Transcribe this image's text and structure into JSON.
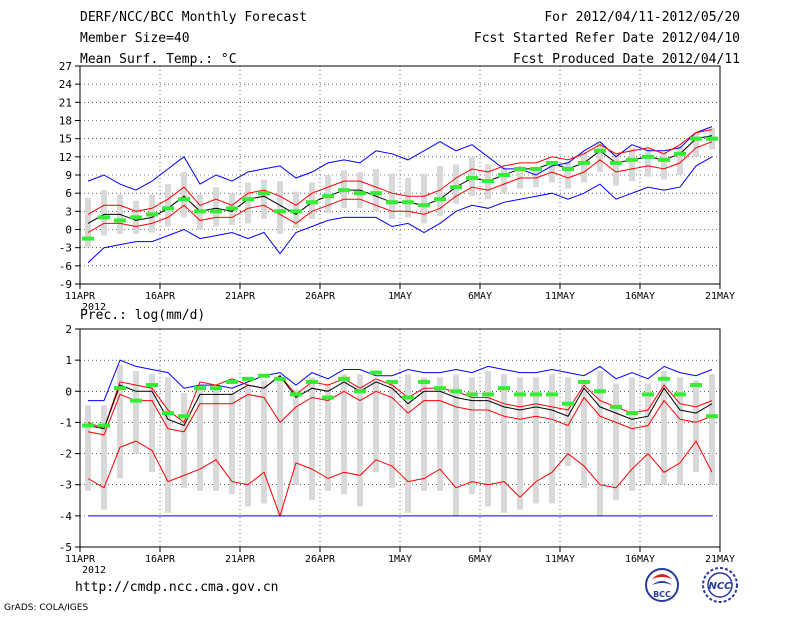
{
  "header": {
    "title": "DERF/NCC/BCC Monthly Forecast",
    "member_size": "Member Size=40",
    "variable": "Mean Surf. Temp.: °C",
    "period": "For 2012/04/11-2012/05/20",
    "started": "Fcst Started Refer Date 2012/04/10",
    "produced": "Fcst Produced Date 2012/04/11"
  },
  "footer": {
    "url": "http://cmdp.ncc.cma.gov.cn",
    "credit": "GrADS: COLA/IGES",
    "logo_bcc": "BCC",
    "logo_ncc": "NCC"
  },
  "colors": {
    "max_min": "#0000ff",
    "spread": "#ff0000",
    "mean": "#000000",
    "median": "#33ee33",
    "box": "#d9d9d9",
    "grid": "#000000"
  },
  "chart_data": [
    {
      "type": "line",
      "title": "Mean Surf. Temp.: °C",
      "x_tick_labels": [
        "11APR",
        "16APR",
        "21APR",
        "26APR",
        "1MAY",
        "6MAY",
        "11MAY",
        "16MAY",
        "21MAY"
      ],
      "x_year_label": "2012",
      "ylim": [
        -9,
        27
      ],
      "y_ticks": [
        -9,
        -6,
        -3,
        0,
        3,
        6,
        9,
        12,
        15,
        18,
        21,
        24,
        27
      ],
      "days": 40,
      "series": [
        {
          "name": "max",
          "color": "blue",
          "values": [
            8,
            9,
            7.5,
            6.5,
            8,
            10,
            12,
            7.5,
            9,
            8,
            9.5,
            10,
            10.5,
            8.5,
            9.5,
            11,
            11.5,
            11,
            13,
            12.5,
            11.5,
            13,
            14.5,
            13,
            14,
            12,
            10,
            10,
            9,
            10.5,
            11,
            13,
            14.5,
            12,
            14,
            13,
            13,
            13.5,
            16,
            17
          ]
        },
        {
          "name": "upper",
          "color": "red",
          "values": [
            2.5,
            4,
            4,
            3,
            3.5,
            5,
            7,
            4,
            5,
            4,
            6,
            6.5,
            5.5,
            4,
            6,
            7,
            8,
            8,
            7,
            6,
            5.5,
            5.5,
            6.5,
            8.5,
            10,
            9.5,
            10.5,
            11,
            11,
            12,
            11.5,
            12.5,
            14,
            12.5,
            13,
            13.5,
            12.5,
            14,
            16,
            16.5
          ]
        },
        {
          "name": "mean",
          "color": "black",
          "values": [
            1,
            2.5,
            2.5,
            1.5,
            2,
            3.5,
            5.5,
            3,
            3.5,
            3,
            5,
            5.5,
            4,
            2.5,
            4.5,
            5.5,
            6.5,
            6.5,
            5.5,
            4.5,
            4.5,
            4,
            5,
            7,
            8.5,
            8,
            9,
            10,
            10,
            11,
            10,
            11,
            13,
            11,
            11.5,
            12,
            11.5,
            12.5,
            15,
            15.5
          ]
        },
        {
          "name": "lower",
          "color": "red",
          "values": [
            -0.5,
            1,
            1,
            0.5,
            1,
            2,
            4,
            1.5,
            2,
            2,
            3.5,
            4,
            2.5,
            1,
            3,
            4,
            5,
            5,
            4,
            3,
            3,
            2.5,
            3.5,
            5.5,
            7,
            6.5,
            7.5,
            8.5,
            8.5,
            9.5,
            8.5,
            9.5,
            11.5,
            9.5,
            10,
            10.5,
            10,
            11,
            13.5,
            14.5
          ]
        },
        {
          "name": "min",
          "color": "blue",
          "values": [
            -5.5,
            -3,
            -2.5,
            -2,
            -2,
            -1,
            0,
            -1.5,
            -1,
            -0.5,
            -1.5,
            -0.5,
            -4,
            -0.5,
            0.5,
            1.5,
            2,
            2,
            2,
            0.5,
            1,
            -0.5,
            1,
            3,
            4,
            3.5,
            4.5,
            5,
            5.5,
            6,
            5,
            6,
            7.5,
            5,
            6,
            7,
            6.5,
            7,
            10.5,
            12
          ]
        }
      ],
      "median_markers": [
        -1.5,
        2,
        1.5,
        2,
        2.5,
        3.5,
        5,
        3,
        3,
        3.5,
        5,
        6,
        3,
        3,
        4.5,
        5.5,
        6.5,
        6,
        6,
        4.5,
        4.5,
        4,
        5,
        7,
        8.5,
        8,
        9,
        10,
        10,
        11,
        10,
        11,
        13,
        11,
        11.5,
        12,
        11.5,
        12.5,
        15,
        15
      ]
    },
    {
      "type": "line",
      "title": "Prec.: log(mm/d)",
      "x_tick_labels": [
        "11APR",
        "16APR",
        "21APR",
        "26APR",
        "1MAY",
        "6MAY",
        "11MAY",
        "16MAY",
        "21MAY"
      ],
      "x_year_label": "2012",
      "ylim": [
        -5,
        2
      ],
      "y_ticks": [
        -5,
        -4,
        -3,
        -2,
        -1,
        0,
        1,
        2
      ],
      "days": 40,
      "series": [
        {
          "name": "max",
          "color": "blue",
          "values": [
            -0.3,
            -0.3,
            1,
            0.8,
            0.7,
            0.6,
            0.1,
            0.2,
            0.2,
            0.1,
            0.3,
            0.5,
            0.6,
            0.2,
            0.6,
            0.4,
            0.7,
            0.7,
            0.5,
            0.5,
            0.7,
            0.6,
            0.6,
            0.7,
            0.6,
            0.8,
            0.7,
            0.6,
            0.6,
            0.7,
            0.6,
            0.5,
            0.8,
            0.4,
            0.6,
            0.4,
            0.8,
            0.6,
            0.5,
            0.7
          ]
        },
        {
          "name": "upper",
          "color": "red",
          "values": [
            -1,
            -1.2,
            0.3,
            0.2,
            0.1,
            -0.6,
            -1,
            0.3,
            0.2,
            0.4,
            0.2,
            0.1,
            0.5,
            -0.1,
            0.3,
            0.2,
            0.4,
            0.1,
            0.4,
            0.2,
            -0.2,
            0.1,
            0.1,
            0,
            -0.2,
            -0.2,
            -0.4,
            -0.5,
            -0.4,
            -0.5,
            -0.6,
            0.2,
            -0.3,
            -0.5,
            -0.7,
            -0.6,
            0.2,
            -0.4,
            -0.5,
            -0.3
          ]
        },
        {
          "name": "mean",
          "color": "black",
          "values": [
            -1.1,
            -1.2,
            0.2,
            0,
            0,
            -0.9,
            -1.1,
            -0.1,
            -0.1,
            -0.1,
            0.2,
            0.1,
            0.5,
            -0.2,
            0.1,
            0,
            0.3,
            0,
            0.3,
            0.1,
            -0.4,
            0,
            0,
            -0.2,
            -0.3,
            -0.3,
            -0.5,
            -0.6,
            -0.5,
            -0.6,
            -0.8,
            0.1,
            -0.5,
            -0.7,
            -0.9,
            -0.8,
            0.1,
            -0.6,
            -0.7,
            -0.4
          ]
        },
        {
          "name": "lower",
          "color": "red",
          "values": [
            -1.3,
            -1.4,
            -0.1,
            -0.3,
            -0.3,
            -1.2,
            -1.3,
            -0.4,
            -0.4,
            -0.4,
            -0.1,
            -0.2,
            -1,
            -0.5,
            -0.2,
            -0.3,
            0,
            -0.3,
            0,
            -0.2,
            -0.7,
            -0.3,
            -0.3,
            -0.5,
            -0.6,
            -0.6,
            -0.8,
            -0.9,
            -0.8,
            -0.9,
            -1.1,
            -0.2,
            -0.8,
            -1,
            -1.2,
            -1.1,
            -0.3,
            -0.9,
            -1,
            -0.8
          ]
        },
        {
          "name": "lower10",
          "color": "red",
          "values": [
            -2.8,
            -3.1,
            -1.8,
            -1.6,
            -1.9,
            -2.9,
            -2.7,
            -2.5,
            -2.2,
            -2.9,
            -3,
            -2.6,
            -4,
            -2.3,
            -2.5,
            -2.8,
            -2.6,
            -2.7,
            -2.2,
            -2.4,
            -2.9,
            -2.8,
            -2.5,
            -3.1,
            -2.9,
            -3,
            -2.9,
            -3.4,
            -2.9,
            -2.6,
            -2,
            -2.4,
            -3,
            -3.1,
            -2.5,
            -2,
            -2.6,
            -2.3,
            -1.6,
            -2.6
          ]
        },
        {
          "name": "min",
          "color": "blue",
          "values": [
            -4,
            -4,
            -4,
            -4,
            -4,
            -4,
            -4,
            -4,
            -4,
            -4,
            -4,
            -4,
            -4,
            -4,
            -4,
            -4,
            -4,
            -4,
            -4,
            -4,
            -4,
            -4,
            -4,
            -4,
            -4,
            -4,
            -4,
            -4,
            -4,
            -4,
            -4,
            -4,
            -4,
            -4,
            -4,
            -4,
            -4,
            -4,
            -4,
            -4
          ]
        }
      ],
      "median_markers": [
        -1.1,
        -1.1,
        0.1,
        -0.3,
        0.2,
        -0.7,
        -0.8,
        0.1,
        0.1,
        0.3,
        0.4,
        0.5,
        0.4,
        -0.1,
        0.3,
        -0.2,
        0.4,
        0,
        0.6,
        0.3,
        -0.2,
        0.3,
        0.1,
        0,
        -0.1,
        -0.1,
        0.1,
        -0.1,
        -0.1,
        -0.1,
        -0.4,
        0.3,
        0,
        -0.5,
        -0.7,
        -0.1,
        0.4,
        -0.1,
        0.2,
        -0.8
      ]
    }
  ]
}
